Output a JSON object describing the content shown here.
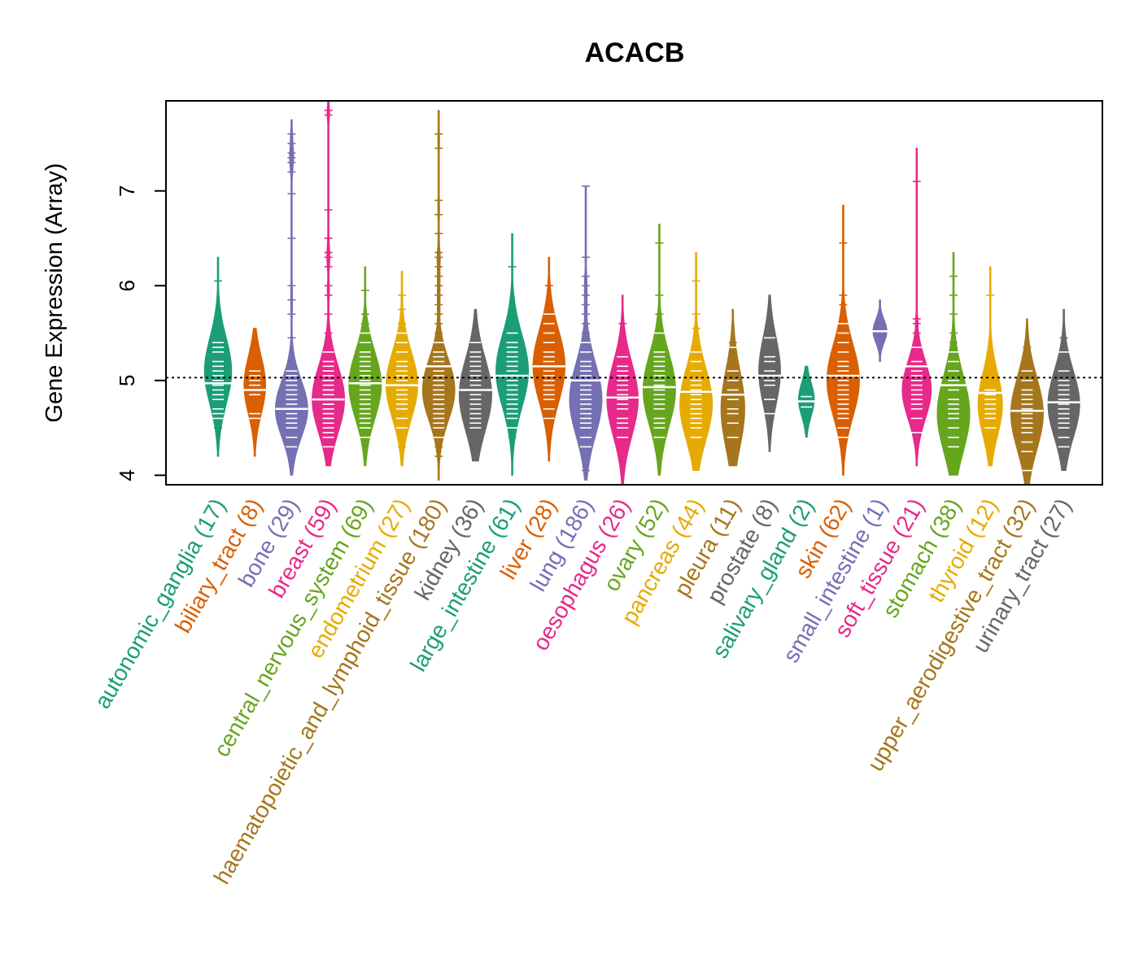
{
  "chart_data": {
    "type": "beanplot",
    "title": "ACACB",
    "xlabel": "",
    "ylabel": "Gene Expression (Array)",
    "ylim": [
      3.9,
      7.95
    ],
    "yticks": [
      4,
      5,
      6,
      7
    ],
    "reference_line": 5.03,
    "grid": false,
    "legend": "none",
    "groups": [
      {
        "name": "autonomic_ganglia",
        "n": 17,
        "count_label": "(17)",
        "color": "#1B9E77",
        "median": 4.97,
        "min": 4.2,
        "max": 6.3,
        "peak": 5.1,
        "spread": 0.35,
        "points": [
          4.5,
          4.6,
          4.65,
          4.7,
          4.8,
          4.85,
          4.9,
          4.95,
          5.0,
          5.05,
          5.1,
          5.15,
          5.2,
          5.3,
          5.35,
          5.4,
          6.05
        ]
      },
      {
        "name": "biliary_tract",
        "n": 8,
        "count_label": "(8)",
        "color": "#D95F02",
        "median": 4.9,
        "min": 4.2,
        "max": 5.55,
        "peak": 4.95,
        "spread": 0.3,
        "points": [
          4.6,
          4.65,
          4.85,
          4.9,
          4.95,
          5.0,
          5.05,
          5.1
        ]
      },
      {
        "name": "bone",
        "n": 29,
        "count_label": "(29)",
        "color": "#7570B3",
        "median": 4.7,
        "min": 4.0,
        "max": 7.75,
        "peak": 4.7,
        "spread": 0.3,
        "points": [
          4.3,
          4.4,
          4.5,
          4.55,
          4.6,
          4.65,
          4.7,
          4.7,
          4.75,
          4.8,
          4.85,
          4.9,
          4.95,
          5.0,
          5.05,
          5.1,
          5.2,
          5.45,
          5.7,
          5.85,
          6.0,
          6.5,
          6.97,
          7.2,
          7.3,
          7.35,
          7.4,
          7.5,
          7.6
        ]
      },
      {
        "name": "breast",
        "n": 59,
        "count_label": "(59)",
        "color": "#E7298A",
        "median": 4.8,
        "min": 4.1,
        "max": 7.95,
        "peak": 4.8,
        "spread": 0.35,
        "points": [
          4.3,
          4.4,
          4.45,
          4.5,
          4.55,
          4.6,
          4.6,
          4.65,
          4.7,
          4.7,
          4.75,
          4.75,
          4.8,
          4.8,
          4.85,
          4.9,
          4.9,
          4.95,
          5.0,
          5.0,
          5.05,
          5.1,
          5.15,
          5.2,
          5.3,
          5.4,
          5.5,
          5.7,
          5.9,
          6.0,
          6.2,
          6.3,
          6.35,
          6.5,
          6.8,
          7.8,
          7.85
        ]
      },
      {
        "name": "central_nervous_system",
        "n": 69,
        "count_label": "(69)",
        "color": "#66A61E",
        "median": 4.97,
        "min": 4.1,
        "max": 6.2,
        "peak": 4.95,
        "spread": 0.35,
        "points": [
          4.4,
          4.5,
          4.55,
          4.6,
          4.65,
          4.7,
          4.75,
          4.8,
          4.85,
          4.9,
          4.95,
          5.0,
          5.05,
          5.1,
          5.15,
          5.2,
          5.25,
          5.3,
          5.4,
          5.5,
          5.6,
          5.7,
          5.95
        ]
      },
      {
        "name": "endometrium",
        "n": 27,
        "count_label": "(27)",
        "color": "#E6AB02",
        "median": 4.95,
        "min": 4.1,
        "max": 6.15,
        "peak": 4.95,
        "spread": 0.35,
        "points": [
          4.3,
          4.5,
          4.6,
          4.7,
          4.75,
          4.8,
          4.85,
          4.9,
          4.95,
          5.0,
          5.05,
          5.1,
          5.15,
          5.2,
          5.3,
          5.4,
          5.5,
          5.6,
          5.75,
          5.9
        ]
      },
      {
        "name": "haematopoietic_and_lymphoid_tissue",
        "n": 180,
        "count_label": "(180)",
        "color": "#A6761D",
        "median": 5.15,
        "min": 3.95,
        "max": 7.85,
        "peak": 4.9,
        "spread": 0.32,
        "points": [
          4.2,
          4.3,
          4.4,
          4.5,
          4.55,
          4.6,
          4.65,
          4.7,
          4.75,
          4.8,
          4.85,
          4.9,
          4.95,
          5.0,
          5.05,
          5.1,
          5.15,
          5.2,
          5.25,
          5.3,
          5.4,
          5.5,
          5.6,
          5.7,
          5.8,
          5.9,
          6.0,
          6.1,
          6.2,
          6.3,
          6.35,
          6.55,
          6.75,
          6.9,
          7.45,
          7.6
        ]
      },
      {
        "name": "kidney",
        "n": 36,
        "count_label": "(36)",
        "color": "#666666",
        "median": 4.9,
        "min": 4.15,
        "max": 5.75,
        "peak": 4.85,
        "spread": 0.38,
        "points": [
          4.5,
          4.55,
          4.6,
          4.65,
          4.7,
          4.75,
          4.8,
          4.85,
          4.9,
          4.95,
          5.0,
          5.05,
          5.1,
          5.15,
          5.2,
          5.25,
          5.3,
          5.4,
          5.5
        ]
      },
      {
        "name": "large_intestine",
        "n": 61,
        "count_label": "(61)",
        "color": "#1B9E77",
        "median": 5.05,
        "min": 4.0,
        "max": 6.55,
        "peak": 5.1,
        "spread": 0.38,
        "points": [
          4.4,
          4.5,
          4.6,
          4.65,
          4.7,
          4.75,
          4.8,
          4.85,
          4.9,
          4.95,
          5.0,
          5.05,
          5.1,
          5.15,
          5.2,
          5.25,
          5.3,
          5.35,
          5.4,
          5.5,
          6.2
        ]
      },
      {
        "name": "liver",
        "n": 28,
        "count_label": "(28)",
        "color": "#D95F02",
        "median": 5.15,
        "min": 4.15,
        "max": 6.3,
        "peak": 5.15,
        "spread": 0.38,
        "points": [
          4.5,
          4.6,
          4.7,
          4.8,
          4.85,
          4.9,
          4.95,
          5.0,
          5.05,
          5.1,
          5.15,
          5.2,
          5.25,
          5.3,
          5.4,
          5.5,
          5.6,
          5.7,
          5.8,
          6.0
        ]
      },
      {
        "name": "lung",
        "n": 186,
        "count_label": "(186)",
        "color": "#7570B3",
        "median": 5.0,
        "min": 3.95,
        "max": 7.05,
        "peak": 4.8,
        "spread": 0.38,
        "points": [
          4.05,
          4.3,
          4.4,
          4.5,
          4.55,
          4.6,
          4.65,
          4.7,
          4.75,
          4.8,
          4.85,
          4.9,
          4.95,
          5.0,
          5.05,
          5.1,
          5.15,
          5.2,
          5.3,
          5.4,
          5.5,
          5.6,
          5.7,
          5.8,
          5.9,
          6.0,
          6.1,
          6.3,
          7.05
        ]
      },
      {
        "name": "oesophagus",
        "n": 26,
        "count_label": "(26)",
        "color": "#E7298A",
        "median": 4.82,
        "min": 3.9,
        "max": 5.9,
        "peak": 4.8,
        "spread": 0.38,
        "points": [
          4.15,
          4.4,
          4.5,
          4.55,
          4.6,
          4.7,
          4.75,
          4.8,
          4.85,
          4.9,
          4.95,
          5.0,
          5.05,
          5.1,
          5.15,
          5.25,
          5.6
        ]
      },
      {
        "name": "ovary",
        "n": 52,
        "count_label": "(52)",
        "color": "#66A61E",
        "median": 4.93,
        "min": 4.0,
        "max": 6.65,
        "peak": 4.9,
        "spread": 0.38,
        "points": [
          4.4,
          4.5,
          4.55,
          4.6,
          4.7,
          4.75,
          4.8,
          4.85,
          4.9,
          4.95,
          5.0,
          5.05,
          5.1,
          5.15,
          5.2,
          5.25,
          5.3,
          5.5,
          5.7,
          5.9,
          6.45
        ]
      },
      {
        "name": "pancreas",
        "n": 44,
        "count_label": "(44)",
        "color": "#E6AB02",
        "median": 4.88,
        "min": 4.05,
        "max": 6.35,
        "peak": 4.75,
        "spread": 0.38,
        "points": [
          4.4,
          4.5,
          4.55,
          4.6,
          4.65,
          4.7,
          4.75,
          4.8,
          4.85,
          4.9,
          4.95,
          5.0,
          5.1,
          5.2,
          5.3,
          5.4,
          5.55,
          5.7,
          6.05
        ]
      },
      {
        "name": "pleura",
        "n": 11,
        "count_label": "(11)",
        "color": "#A6761D",
        "median": 4.85,
        "min": 4.1,
        "max": 5.75,
        "peak": 4.7,
        "spread": 0.4,
        "points": [
          4.4,
          4.55,
          4.65,
          4.7,
          4.8,
          4.85,
          4.9,
          5.0,
          5.1,
          5.35,
          5.4
        ]
      },
      {
        "name": "prostate",
        "n": 8,
        "count_label": "(8)",
        "color": "#666666",
        "median": 5.05,
        "min": 4.25,
        "max": 5.9,
        "peak": 5.1,
        "spread": 0.35,
        "points": [
          4.65,
          4.8,
          4.95,
          5.0,
          5.1,
          5.2,
          5.25,
          5.45
        ]
      },
      {
        "name": "salivary_gland",
        "n": 2,
        "count_label": "(2)",
        "color": "#1B9E77",
        "median": 4.78,
        "min": 4.4,
        "max": 5.15,
        "peak": 4.8,
        "spread": 0.18,
        "points": [
          4.72,
          4.83
        ]
      },
      {
        "name": "skin",
        "n": 62,
        "count_label": "(62)",
        "color": "#D95F02",
        "median": 5.05,
        "min": 4.0,
        "max": 6.85,
        "peak": 5.0,
        "spread": 0.38,
        "points": [
          4.4,
          4.5,
          4.6,
          4.65,
          4.7,
          4.75,
          4.8,
          4.85,
          4.9,
          4.95,
          5.0,
          5.05,
          5.1,
          5.15,
          5.2,
          5.3,
          5.4,
          5.5,
          5.6,
          5.8,
          5.9,
          6.45
        ]
      },
      {
        "name": "small_intestine",
        "n": 1,
        "count_label": "(1)",
        "color": "#7570B3",
        "median": 5.52,
        "min": 5.2,
        "max": 5.85,
        "peak": 5.52,
        "spread": 0.12,
        "points": [
          5.52
        ]
      },
      {
        "name": "soft_tissue",
        "n": 21,
        "count_label": "(21)",
        "color": "#E7298A",
        "median": 5.15,
        "min": 4.1,
        "max": 7.45,
        "peak": 4.9,
        "spread": 0.3,
        "points": [
          4.45,
          4.6,
          4.7,
          4.75,
          4.8,
          4.85,
          4.9,
          4.95,
          5.0,
          5.05,
          5.1,
          5.2,
          5.35,
          5.5,
          5.6,
          5.65,
          7.1
        ]
      },
      {
        "name": "stomach",
        "n": 38,
        "count_label": "(38)",
        "color": "#66A61E",
        "median": 4.95,
        "min": 4.0,
        "max": 6.35,
        "peak": 4.65,
        "spread": 0.4,
        "points": [
          4.3,
          4.4,
          4.5,
          4.6,
          4.65,
          4.7,
          4.75,
          4.8,
          4.9,
          5.0,
          5.1,
          5.2,
          5.3,
          5.4,
          5.5,
          5.7,
          5.9,
          6.1
        ]
      },
      {
        "name": "thyroid",
        "n": 12,
        "count_label": "(12)",
        "color": "#E6AB02",
        "median": 4.87,
        "min": 4.1,
        "max": 6.2,
        "peak": 4.75,
        "spread": 0.33,
        "points": [
          4.5,
          4.6,
          4.65,
          4.7,
          4.75,
          4.8,
          4.85,
          4.9,
          5.3,
          5.9
        ]
      },
      {
        "name": "upper_aerodigestive_tract",
        "n": 32,
        "count_label": "(32)",
        "color": "#A6761D",
        "median": 4.68,
        "min": 3.9,
        "max": 5.65,
        "peak": 4.65,
        "spread": 0.38,
        "points": [
          4.05,
          4.25,
          4.35,
          4.45,
          4.5,
          4.55,
          4.6,
          4.65,
          4.7,
          4.75,
          4.8,
          4.85,
          4.9,
          5.0,
          5.1,
          5.35
        ]
      },
      {
        "name": "urinary_tract",
        "n": 27,
        "count_label": "(27)",
        "color": "#666666",
        "median": 4.77,
        "min": 4.05,
        "max": 5.75,
        "peak": 4.75,
        "spread": 0.35,
        "points": [
          4.3,
          4.4,
          4.5,
          4.55,
          4.6,
          4.65,
          4.7,
          4.75,
          4.8,
          4.85,
          4.9,
          4.95,
          5.0,
          5.1,
          5.3,
          5.45
        ]
      }
    ]
  }
}
